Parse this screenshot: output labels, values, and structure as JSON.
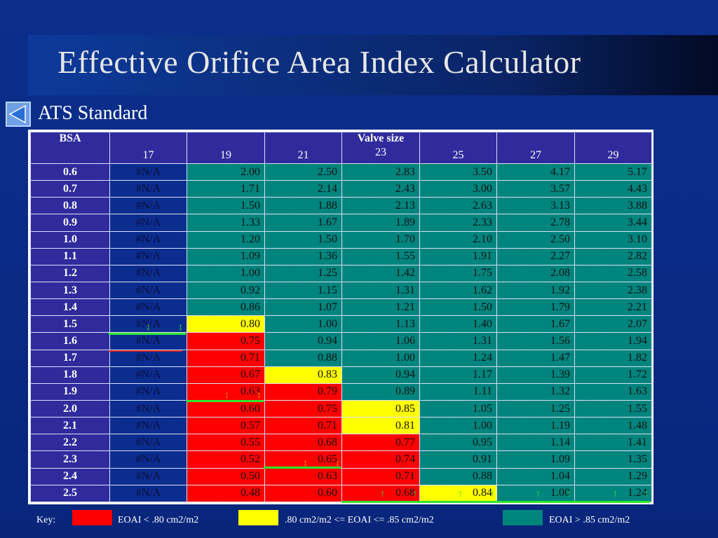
{
  "title": "Effective Orifice Area Index Calculator",
  "subtitle": "ATS Standard",
  "back_icon": "back-triangle-icon",
  "table": {
    "bsa_header": "BSA",
    "valve_header": "Valve size",
    "sizes": [
      "17",
      "19",
      "21",
      "23",
      "25",
      "27",
      "29"
    ],
    "rows": [
      {
        "bsa": "0.6",
        "cells": [
          "#N/A",
          "2.00",
          "2.50",
          "2.83",
          "3.50",
          "4.17",
          "5.17"
        ],
        "classes": [
          "na",
          "teal",
          "teal",
          "teal",
          "teal",
          "teal",
          "teal"
        ]
      },
      {
        "bsa": "0.7",
        "cells": [
          "#N/A",
          "1.71",
          "2.14",
          "2.43",
          "3.00",
          "3.57",
          "4.43"
        ],
        "classes": [
          "na",
          "teal",
          "teal",
          "teal",
          "teal",
          "teal",
          "teal"
        ]
      },
      {
        "bsa": "0.8",
        "cells": [
          "#N/A",
          "1.50",
          "1.88",
          "2.13",
          "2.63",
          "3.13",
          "3.88"
        ],
        "classes": [
          "na",
          "teal",
          "teal",
          "teal",
          "teal",
          "teal",
          "teal"
        ]
      },
      {
        "bsa": "0.9",
        "cells": [
          "#N/A",
          "1.33",
          "1.67",
          "1.89",
          "2.33",
          "2.78",
          "3.44"
        ],
        "classes": [
          "na",
          "teal",
          "teal",
          "teal",
          "teal",
          "teal",
          "teal"
        ]
      },
      {
        "bsa": "1.0",
        "cells": [
          "#N/A",
          "1.20",
          "1.50",
          "1.70",
          "2.10",
          "2.50",
          "3.10"
        ],
        "classes": [
          "na",
          "teal",
          "teal",
          "teal",
          "teal",
          "teal",
          "teal"
        ]
      },
      {
        "bsa": "1.1",
        "cells": [
          "#N/A",
          "1.09",
          "1.36",
          "1.55",
          "1.91",
          "2.27",
          "2.82"
        ],
        "classes": [
          "na",
          "teal",
          "teal",
          "teal",
          "teal",
          "teal",
          "teal"
        ]
      },
      {
        "bsa": "1.2",
        "cells": [
          "#N/A",
          "1.00",
          "1.25",
          "1.42",
          "1.75",
          "2.08",
          "2.58"
        ],
        "classes": [
          "na",
          "teal",
          "teal",
          "teal",
          "teal",
          "teal",
          "teal"
        ]
      },
      {
        "bsa": "1.3",
        "cells": [
          "#N/A",
          "0.92",
          "1.15",
          "1.31",
          "1.62",
          "1.92",
          "2.38"
        ],
        "classes": [
          "na",
          "teal",
          "teal",
          "teal",
          "teal",
          "teal",
          "teal"
        ]
      },
      {
        "bsa": "1.4",
        "cells": [
          "#N/A",
          "0.86",
          "1.07",
          "1.21",
          "1.50",
          "1.79",
          "2.21"
        ],
        "classes": [
          "na",
          "teal",
          "teal",
          "teal",
          "teal",
          "teal",
          "teal"
        ]
      },
      {
        "bsa": "1.5",
        "cells": [
          "#N/A",
          "0.80",
          "1.00",
          "1.13",
          "1.40",
          "1.67",
          "2.07"
        ],
        "classes": [
          "na",
          "yellow",
          "teal",
          "teal",
          "teal",
          "teal",
          "teal"
        ]
      },
      {
        "bsa": "1.6",
        "cells": [
          "#N/A",
          "0.75",
          "0.94",
          "1.06",
          "1.31",
          "1.56",
          "1.94"
        ],
        "classes": [
          "na",
          "red",
          "teal",
          "teal",
          "teal",
          "teal",
          "teal"
        ]
      },
      {
        "bsa": "1.7",
        "cells": [
          "#N/A",
          "0.71",
          "0.88",
          "1.00",
          "1.24",
          "1.47",
          "1.82"
        ],
        "classes": [
          "na",
          "red",
          "teal",
          "teal",
          "teal",
          "teal",
          "teal"
        ]
      },
      {
        "bsa": "1.8",
        "cells": [
          "#N/A",
          "0.67",
          "0.83",
          "0.94",
          "1.17",
          "1.39",
          "1.72"
        ],
        "classes": [
          "na",
          "red",
          "yellow",
          "teal",
          "teal",
          "teal",
          "teal"
        ]
      },
      {
        "bsa": "1.9",
        "cells": [
          "#N/A",
          "0.63",
          "0.79",
          "0.89",
          "1.11",
          "1.32",
          "1.63"
        ],
        "classes": [
          "na",
          "red",
          "red",
          "teal",
          "teal",
          "teal",
          "teal"
        ]
      },
      {
        "bsa": "2.0",
        "cells": [
          "#N/A",
          "0.60",
          "0.75",
          "0.85",
          "1.05",
          "1.25",
          "1.55"
        ],
        "classes": [
          "na",
          "red",
          "red",
          "yellow",
          "teal",
          "teal",
          "teal"
        ]
      },
      {
        "bsa": "2.1",
        "cells": [
          "#N/A",
          "0.57",
          "0.71",
          "0.81",
          "1.00",
          "1.19",
          "1.48"
        ],
        "classes": [
          "na",
          "red",
          "red",
          "yellow",
          "teal",
          "teal",
          "teal"
        ]
      },
      {
        "bsa": "2.2",
        "cells": [
          "#N/A",
          "0.55",
          "0.68",
          "0.77",
          "0.95",
          "1.14",
          "1.41"
        ],
        "classes": [
          "na",
          "red",
          "red",
          "red",
          "teal",
          "teal",
          "teal"
        ]
      },
      {
        "bsa": "2.3",
        "cells": [
          "#N/A",
          "0.52",
          "0.65",
          "0.74",
          "0.91",
          "1.09",
          "1.35"
        ],
        "classes": [
          "na",
          "red",
          "red",
          "red",
          "teal",
          "teal",
          "teal"
        ]
      },
      {
        "bsa": "2.4",
        "cells": [
          "#N/A",
          "0.50",
          "0.63",
          "0.71",
          "0.88",
          "1.04",
          "1.29"
        ],
        "classes": [
          "na",
          "red",
          "red",
          "red",
          "teal",
          "teal",
          "teal"
        ]
      },
      {
        "bsa": "2.5",
        "cells": [
          "#N/A",
          "0.48",
          "0.60",
          "0.68",
          "0.84",
          "1.00",
          "1.24"
        ],
        "classes": [
          "na",
          "red",
          "red",
          "red",
          "yellow",
          "teal",
          "teal"
        ]
      }
    ]
  },
  "key": {
    "label": "Key:",
    "red_label": "EOAI < .80 cm2/m2",
    "yellow_label": ".80 cm2/m2 <= EOAI <= .85 cm2/m2",
    "teal_label": "EOAI > .85 cm2/m2"
  },
  "colors": {
    "red": "#ff0000",
    "yellow": "#ffff00",
    "teal": "#00857e",
    "header": "#2f2b9c"
  }
}
